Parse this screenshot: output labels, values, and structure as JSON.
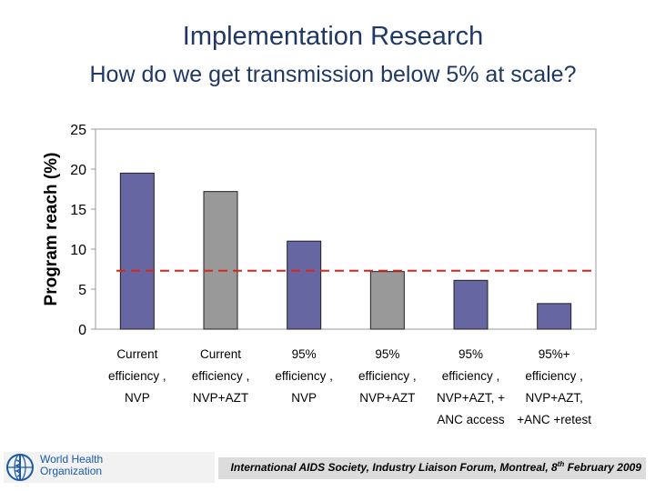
{
  "slide": {
    "title": "Implementation Research",
    "subtitle": "How do we get transmission below 5% at scale?"
  },
  "chart_data": {
    "type": "bar",
    "title": "",
    "xlabel": "",
    "ylabel": "Program reach (%)",
    "ylim": [
      0,
      25
    ],
    "yticks": [
      0,
      5,
      10,
      15,
      20,
      25
    ],
    "grid": false,
    "reference_line": {
      "value": 7.3,
      "style": "dashed",
      "color": "#d9261c"
    },
    "categories": [
      [
        "Current",
        "efficiency ,",
        "NVP"
      ],
      [
        "Current",
        "efficiency ,",
        "NVP+AZT"
      ],
      [
        "95%",
        "efficiency ,",
        "NVP"
      ],
      [
        "95%",
        "efficiency ,",
        "NVP+AZT"
      ],
      [
        "95%",
        "efficiency ,",
        "NVP+AZT, +",
        "ANC access"
      ],
      [
        "95%+",
        "efficiency ,",
        "NVP+AZT,",
        "+ANC +retest"
      ]
    ],
    "values": [
      19.5,
      17.2,
      11.0,
      7.2,
      6.1,
      3.2
    ],
    "bar_colors": [
      "#6666a3",
      "#999999",
      "#6666a3",
      "#999999",
      "#6666a3",
      "#6666a3"
    ]
  },
  "footer": {
    "text": "International AIDS Society, Industry Liaison Forum, Montreal, 8",
    "superscript": "th",
    "text_end": " February 2009"
  },
  "logo": {
    "line1": "World Health",
    "line2": "Organization"
  }
}
